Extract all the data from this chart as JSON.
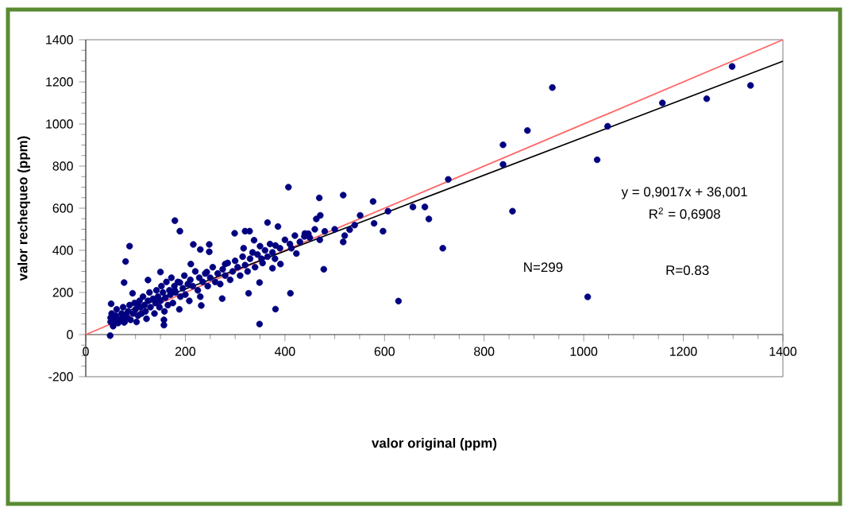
{
  "chart_data": {
    "type": "scatter",
    "xlabel": "valor original  (ppm)",
    "ylabel": "valor rechequeo (ppm)",
    "annotations": [
      "y = 0,9017x + 36,001",
      "R$^{2}$ = 0,6908",
      "N=299",
      "R=0.83"
    ],
    "xlim": [
      0,
      1400
    ],
    "ylim": [
      -200,
      1400
    ],
    "xticks": [
      0,
      200,
      400,
      600,
      800,
      1000,
      1200,
      1400
    ],
    "yticks": [
      -200,
      0,
      200,
      400,
      600,
      800,
      1000,
      1200,
      1400
    ],
    "grid": false,
    "series": [
      {
        "marker": "circle",
        "color": "#000080",
        "x": [
          407,
          179,
          189,
          88,
          80,
          349,
          381,
          628,
          728,
          717,
          657,
          681,
          689,
          577,
          517,
          469,
          411,
          478,
          607,
          597,
          579,
          517,
          530,
          551,
          216,
          248,
          248,
          230,
          299,
          320,
          329,
          365,
          386,
          150,
          51,
          49,
          280,
          317,
          338,
          353,
          349,
          327,
          274,
          157,
          157,
          232,
          423,
          439,
          447,
          463,
          471,
          413,
          381,
          391,
          375,
          189,
          211,
          243,
          179,
          94,
          77,
          125,
          104,
          83,
          77,
          56,
          937,
          887,
          838,
          838,
          857,
          1008,
          1027,
          1048,
          1158,
          1247,
          1298,
          1335,
          50,
          50,
          52,
          55,
          58,
          60,
          62,
          65,
          70,
          72,
          75,
          78,
          80,
          85,
          88,
          90,
          95,
          98,
          100,
          102,
          105,
          108,
          110,
          112,
          115,
          118,
          120,
          122,
          125,
          128,
          130,
          135,
          138,
          140,
          142,
          145,
          148,
          150,
          152,
          155,
          158,
          160,
          162,
          165,
          168,
          170,
          172,
          175,
          178,
          180,
          185,
          188,
          190,
          195,
          198,
          200,
          205,
          208,
          210,
          215,
          220,
          225,
          228,
          230,
          235,
          240,
          245,
          250,
          255,
          260,
          265,
          270,
          275,
          280,
          285,
          290,
          295,
          300,
          305,
          310,
          315,
          320,
          325,
          330,
          335,
          340,
          345,
          350,
          355,
          360,
          365,
          370,
          375,
          380,
          390,
          400,
          410,
          420,
          430,
          440,
          450,
          460,
          470,
          480,
          500,
          520,
          540
        ],
        "values": [
          700,
          541,
          491,
          420,
          347,
          50,
          121,
          159,
          737,
          410,
          606,
          606,
          549,
          632,
          662,
          649,
          196,
          310,
          586,
          491,
          528,
          440,
          498,
          566,
          428,
          428,
          393,
          404,
          481,
          491,
          491,
          532,
          513,
          297,
          146,
          -5,
          335,
          410,
          448,
          360,
          247,
          196,
          171,
          70,
          45,
          138,
          385,
          466,
          479,
          549,
          566,
          410,
          423,
          335,
          315,
          247,
          335,
          297,
          209,
          196,
          247,
          259,
          146,
          83,
          58,
          58,
          1173,
          969,
          901,
          808,
          586,
          179,
          830,
          989,
          1100,
          1120,
          1273,
          1183,
          60,
          80,
          100,
          40,
          70,
          90,
          120,
          55,
          75,
          100,
          130,
          60,
          90,
          110,
          140,
          70,
          100,
          150,
          120,
          60,
          90,
          160,
          130,
          100,
          180,
          140,
          110,
          75,
          160,
          200,
          130,
          170,
          100,
          150,
          210,
          180,
          130,
          160,
          230,
          200,
          110,
          175,
          250,
          140,
          210,
          190,
          270,
          150,
          230,
          200,
          250,
          120,
          180,
          220,
          280,
          190,
          240,
          160,
          260,
          230,
          300,
          210,
          270,
          180,
          250,
          290,
          230,
          270,
          320,
          250,
          290,
          240,
          310,
          280,
          340,
          260,
          300,
          350,
          320,
          280,
          370,
          330,
          300,
          360,
          390,
          320,
          380,
          420,
          340,
          400,
          370,
          430,
          390,
          360,
          410,
          450,
          430,
          470,
          440,
          480,
          460,
          500,
          450,
          490,
          500,
          470,
          520
        ]
      },
      {
        "type": "line",
        "color": "#ff6666",
        "x": [
          0,
          1400
        ],
        "values": [
          0,
          1400
        ]
      },
      {
        "type": "line",
        "color": "#000000",
        "x": [
          50,
          1400
        ],
        "values": [
          81,
          1298
        ]
      }
    ]
  }
}
